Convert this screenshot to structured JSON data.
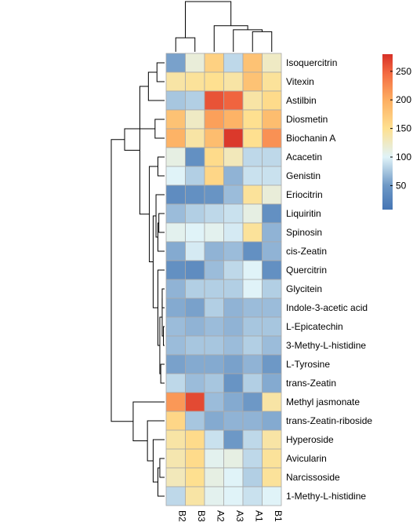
{
  "chart_data": {
    "type": "heatmap",
    "title": "",
    "xlabel": "",
    "ylabel": "",
    "columns": [
      "B2",
      "B3",
      "A2",
      "A3",
      "A1",
      "B1"
    ],
    "rows": [
      "Isoquercitrin",
      "Vitexin",
      "Astilbin",
      "Diosmetin",
      "Biochanin A",
      "Acacetin",
      "Genistin",
      "Eriocitrin",
      "Liquiritin",
      "Spinosin",
      "cis-Zeatin",
      "Quercitrin",
      "Glycitein",
      "Indole-3-acetic acid",
      "L-Epicatechin",
      "3-Methy-L-histidine",
      "L-Tyrosine",
      "trans-Zeatin",
      "Methyl jasmonate",
      "trans-Zeatin-riboside",
      "Hyperoside",
      "Avicularin",
      "Narcissoside",
      "1-Methy-L-histidine"
    ],
    "values": [
      [
        55,
        115,
        165,
        85,
        180,
        125
      ],
      [
        140,
        145,
        150,
        140,
        180,
        145
      ],
      [
        75,
        80,
        260,
        250,
        140,
        155
      ],
      [
        180,
        125,
        210,
        195,
        150,
        185
      ],
      [
        195,
        140,
        185,
        275,
        150,
        220
      ],
      [
        110,
        40,
        155,
        130,
        85,
        85
      ],
      [
        100,
        80,
        160,
        65,
        90,
        90
      ],
      [
        35,
        40,
        45,
        70,
        145,
        115
      ],
      [
        70,
        80,
        85,
        90,
        110,
        40
      ],
      [
        105,
        100,
        105,
        95,
        145,
        65
      ],
      [
        60,
        95,
        65,
        70,
        40,
        65
      ],
      [
        40,
        35,
        70,
        85,
        100,
        40
      ],
      [
        65,
        80,
        80,
        80,
        100,
        80
      ],
      [
        60,
        55,
        80,
        65,
        70,
        70
      ],
      [
        70,
        65,
        70,
        65,
        75,
        75
      ],
      [
        70,
        75,
        75,
        70,
        80,
        70
      ],
      [
        55,
        60,
        60,
        55,
        65,
        50
      ],
      [
        85,
        70,
        75,
        45,
        80,
        60
      ],
      [
        215,
        265,
        70,
        60,
        50,
        140
      ],
      [
        160,
        75,
        60,
        65,
        65,
        60
      ],
      [
        140,
        155,
        90,
        50,
        85,
        140
      ],
      [
        135,
        155,
        105,
        110,
        85,
        145
      ],
      [
        130,
        150,
        110,
        100,
        80,
        145
      ],
      [
        85,
        140,
        105,
        100,
        90,
        100
      ]
    ],
    "color_scale": {
      "stops": [
        {
          "value": 8,
          "color": "#4575b4"
        },
        {
          "value": 50,
          "color": "#6d98c6"
        },
        {
          "value": 100,
          "color": "#e0f3f8"
        },
        {
          "value": 150,
          "color": "#fee090"
        },
        {
          "value": 200,
          "color": "#fdae61"
        },
        {
          "value": 245,
          "color": "#f46d43"
        },
        {
          "value": 280,
          "color": "#d73027"
        }
      ],
      "ticks": [
        50,
        100,
        150,
        200,
        250
      ],
      "range": [
        8,
        280
      ]
    },
    "row_dendrogram": {
      "merges": [
        [
          0,
          1,
          0.08
        ],
        [
          3,
          4,
          0.1
        ],
        [
          2,
          24,
          0.17
        ],
        [
          6,
          5,
          0.07
        ],
        [
          9,
          8,
          0.06
        ],
        [
          10,
          28,
          0.07
        ],
        [
          7,
          29,
          0.09
        ],
        [
          12,
          13,
          0.025
        ],
        [
          14,
          15,
          0.012
        ],
        [
          32,
          31,
          0.025
        ],
        [
          16,
          17,
          0.04
        ],
        [
          33,
          34,
          0.05
        ],
        [
          11,
          35,
          0.07
        ],
        [
          30,
          36,
          0.12
        ],
        [
          27,
          37,
          0.16
        ],
        [
          26,
          38,
          0.26
        ],
        [
          25,
          39,
          0.42
        ],
        [
          21,
          22,
          0.05
        ],
        [
          41,
          23,
          0.07
        ],
        [
          20,
          42,
          0.12
        ],
        [
          19,
          43,
          0.18
        ],
        [
          18,
          44,
          0.33
        ],
        [
          40,
          45,
          0.56
        ]
      ]
    },
    "column_dendrogram": {
      "merges": [
        [
          0,
          1,
          0.28
        ],
        [
          4,
          5,
          0.4
        ],
        [
          3,
          7,
          0.44
        ],
        [
          2,
          8,
          0.52
        ],
        [
          6,
          9,
          1.0
        ]
      ]
    }
  }
}
